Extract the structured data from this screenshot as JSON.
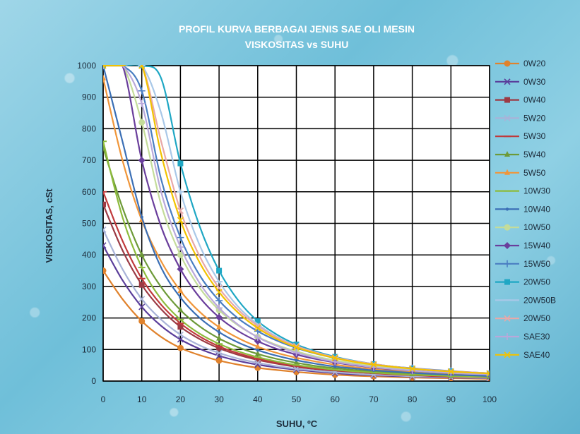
{
  "chart_data": {
    "type": "line",
    "title": "PROFIL KURVA  BERBAGAI JENIS SAE OLI MESIN",
    "subtitle": "VISKOSITAS vs  SUHU",
    "xlabel": "SUHU, ºC",
    "ylabel": "VISKOSITAS, cSt",
    "xlim": [
      0,
      100
    ],
    "ylim": [
      0,
      1000
    ],
    "xticks": [
      "0",
      "10",
      "20",
      "30",
      "40",
      "50",
      "60",
      "70",
      "80",
      "90",
      "100"
    ],
    "yticks": [
      "0",
      "100",
      "200",
      "300",
      "400",
      "500",
      "600",
      "700",
      "800",
      "900",
      "1000"
    ],
    "grid": true,
    "legend_position": "right",
    "x": [
      0,
      5,
      10,
      15,
      20,
      25,
      30,
      35,
      40,
      45,
      50,
      55,
      60,
      65,
      70,
      75,
      80,
      85,
      90,
      95,
      100
    ],
    "series": [
      {
        "name": "0W20",
        "color": "#e0822c",
        "marker": "circle",
        "values": [
          350,
          260,
          190,
          140,
          105,
          82,
          65,
          52,
          42,
          35,
          29,
          24,
          20,
          17,
          15,
          13,
          11,
          10,
          9,
          8,
          7
        ]
      },
      {
        "name": "0W30",
        "color": "#5a3d9a",
        "marker": "x",
        "values": [
          430,
          320,
          235,
          175,
          132,
          102,
          80,
          64,
          52,
          43,
          36,
          30,
          25,
          21,
          18,
          16,
          14,
          12,
          11,
          10,
          9
        ]
      },
      {
        "name": "0W40",
        "color": "#9c3a44",
        "marker": "square",
        "values": [
          560,
          415,
          305,
          228,
          172,
          133,
          104,
          83,
          67,
          55,
          45,
          38,
          32,
          27,
          23,
          20,
          17,
          15,
          13,
          12,
          11
        ]
      },
      {
        "name": "5W20",
        "color": "#a8b3d8",
        "marker": "x",
        "values": [
          480,
          355,
          260,
          195,
          147,
          113,
          89,
          71,
          58,
          47,
          39,
          33,
          28,
          24,
          20,
          18,
          15,
          14,
          12,
          11,
          10
        ]
      },
      {
        "name": "5W30",
        "color": "#c0393b",
        "marker": "line",
        "values": [
          600,
          445,
          325,
          242,
          183,
          141,
          110,
          88,
          71,
          58,
          48,
          40,
          34,
          29,
          25,
          21,
          19,
          16,
          14,
          13,
          12
        ]
      },
      {
        "name": "5W40",
        "color": "#6d9a38",
        "marker": "triangle",
        "values": [
          740,
          550,
          400,
          298,
          225,
          173,
          135,
          107,
          86,
          70,
          58,
          48,
          41,
          35,
          30,
          26,
          22,
          20,
          17,
          15,
          14
        ]
      },
      {
        "name": "5W50",
        "color": "#f0963a",
        "marker": "triangle",
        "values": [
          960,
          700,
          510,
          380,
          286,
          219,
          171,
          136,
          109,
          89,
          74,
          62,
          52,
          44,
          38,
          33,
          29,
          26,
          23,
          21,
          19
        ]
      },
      {
        "name": "10W30",
        "color": "#8dbb3c",
        "marker": "line",
        "values": [
          760,
          520,
          360,
          260,
          195,
          150,
          118,
          94,
          76,
          62,
          51,
          43,
          36,
          31,
          27,
          23,
          20,
          18,
          16,
          14,
          13
        ]
      },
      {
        "name": "10W40",
        "color": "#3b6fb5",
        "marker": "dot",
        "values": [
          1000,
          760,
          520,
          360,
          265,
          200,
          155,
          122,
          98,
          80,
          66,
          55,
          46,
          40,
          34,
          30,
          26,
          23,
          20,
          18,
          16
        ]
      },
      {
        "name": "10W50",
        "color": "#c4dc9a",
        "marker": "circle",
        "values": [
          1000,
          1000,
          820,
          560,
          400,
          295,
          225,
          176,
          140,
          114,
          94,
          78,
          66,
          56,
          48,
          42,
          37,
          32,
          29,
          26,
          23
        ]
      },
      {
        "name": "15W40",
        "color": "#6a3e9c",
        "marker": "diamond",
        "values": [
          1000,
          1000,
          700,
          490,
          355,
          265,
          202,
          158,
          126,
          102,
          84,
          70,
          59,
          50,
          43,
          37,
          33,
          29,
          26,
          23,
          21
        ]
      },
      {
        "name": "15W50",
        "color": "#4a7ec2",
        "marker": "plus",
        "values": [
          1000,
          1000,
          920,
          640,
          455,
          335,
          255,
          198,
          158,
          128,
          105,
          87,
          73,
          62,
          53,
          46,
          41,
          36,
          32,
          28,
          25
        ]
      },
      {
        "name": "20W50",
        "color": "#1fa7c4",
        "marker": "square",
        "values": [
          1000,
          1000,
          1000,
          960,
          690,
          490,
          350,
          255,
          190,
          147,
          116,
          94,
          77,
          64,
          54,
          46,
          40,
          35,
          31,
          27,
          24
        ]
      },
      {
        "name": "20W50B",
        "color": "#a9c8e8",
        "marker": "line",
        "values": [
          1000,
          1000,
          1000,
          850,
          600,
          430,
          315,
          235,
          180,
          140,
          111,
          90,
          74,
          62,
          52,
          45,
          39,
          34,
          30,
          27,
          24
        ]
      },
      {
        "name": "20W50",
        "color": "#e8a8a8",
        "marker": "x",
        "values": [
          1000,
          1000,
          1000,
          760,
          540,
          395,
          295,
          225,
          175,
          138,
          111,
          91,
          75,
          63,
          54,
          46,
          40,
          35,
          31,
          28,
          25
        ]
      },
      {
        "name": "SAE30",
        "color": "#b9a8da",
        "marker": "plus",
        "values": [
          1000,
          1000,
          880,
          600,
          425,
          310,
          232,
          178,
          139,
          111,
          90,
          74,
          61,
          52,
          44,
          38,
          33,
          29,
          26,
          23,
          21
        ]
      },
      {
        "name": "SAE40",
        "color": "#f2c200",
        "marker": "x",
        "values": [
          1000,
          1000,
          1000,
          720,
          510,
          375,
          282,
          216,
          168,
          133,
          107,
          88,
          73,
          61,
          52,
          45,
          39,
          34,
          30,
          27,
          24
        ]
      }
    ]
  }
}
